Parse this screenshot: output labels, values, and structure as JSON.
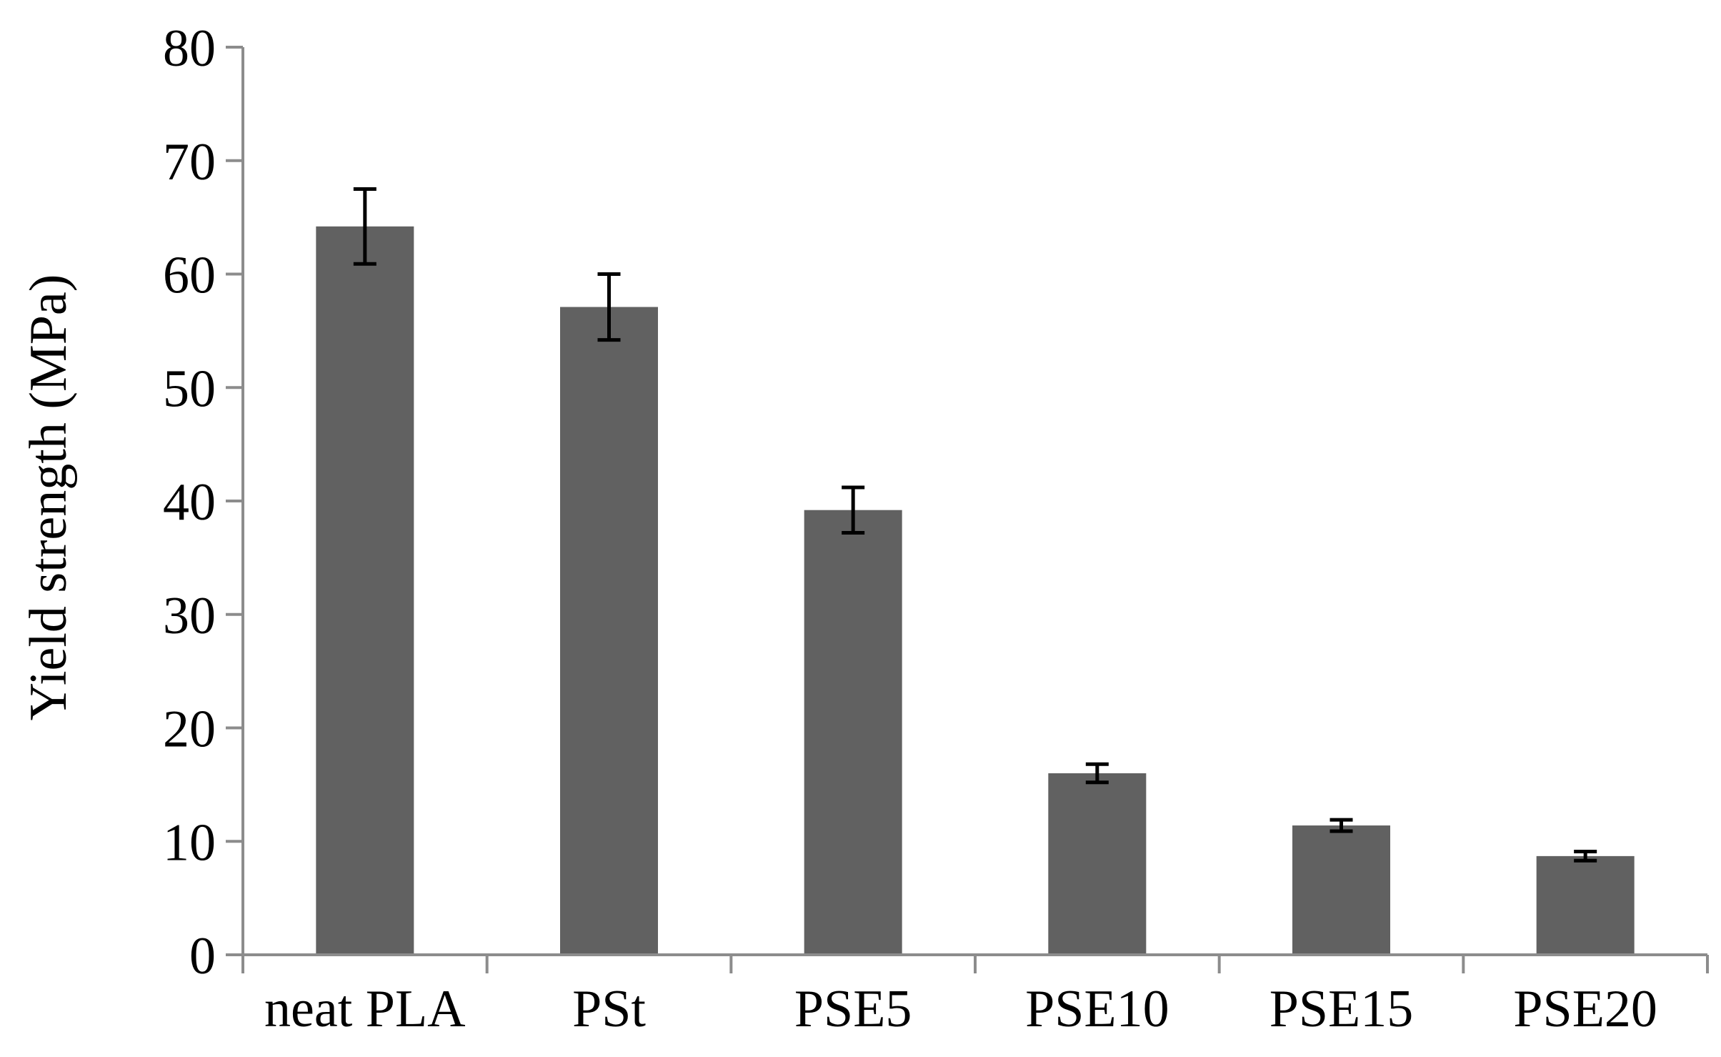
{
  "chart_data": {
    "type": "bar",
    "title": "",
    "xlabel": "",
    "ylabel": "Yield strength (MPa)",
    "categories": [
      "neat PLA",
      "PSt",
      "PSE5",
      "PSE10",
      "PSE15",
      "PSE20"
    ],
    "values": [
      64.2,
      57.1,
      39.2,
      16.0,
      11.4,
      8.7
    ],
    "errors": [
      3.3,
      2.9,
      2.0,
      0.8,
      0.5,
      0.4
    ],
    "ylim": [
      0,
      80
    ],
    "yticks": [
      "0",
      "10",
      "20",
      "30",
      "40",
      "50",
      "60",
      "70",
      "80"
    ],
    "grid": false,
    "legend": "none",
    "colors": {
      "bar": "#616161",
      "axis": "#8c8c8c",
      "error_bar": "#000000"
    }
  }
}
